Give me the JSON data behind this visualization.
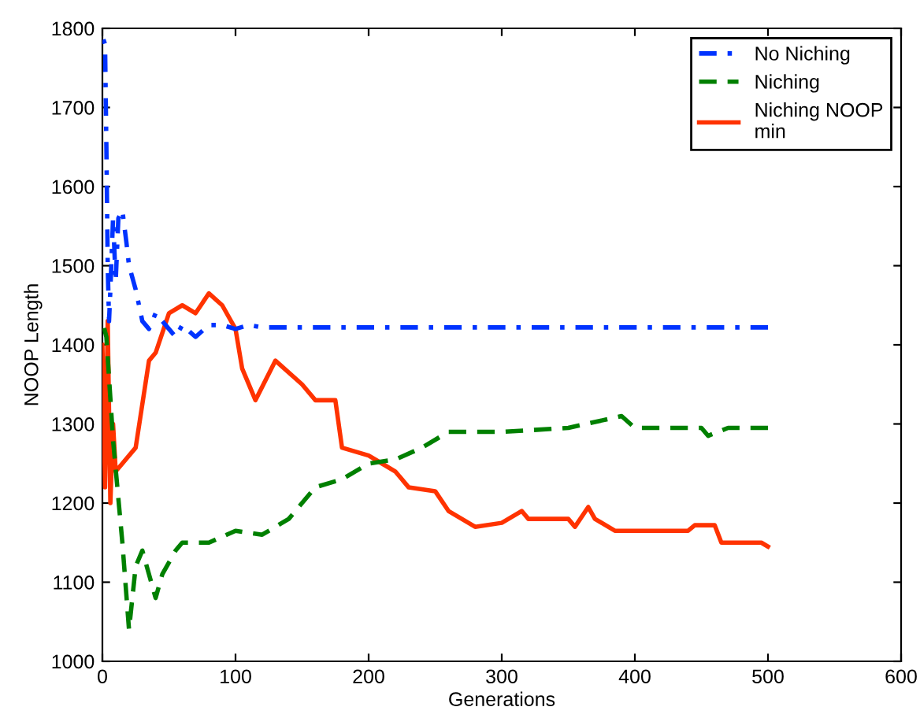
{
  "chart_data": {
    "type": "line",
    "xlabel": "Generations",
    "ylabel": "NOOP Length",
    "xlim": [
      0,
      600
    ],
    "ylim": [
      1000,
      1800
    ],
    "xticks": [
      0,
      100,
      200,
      300,
      400,
      500,
      600
    ],
    "yticks": [
      1000,
      1100,
      1200,
      1300,
      1400,
      1500,
      1600,
      1700,
      1800
    ],
    "grid": false,
    "legend": "top right",
    "marker": "none",
    "series": [
      {
        "name": "No Niching",
        "color": "#0033ff",
        "line_style": "dashdot",
        "x": [
          0,
          2,
          3,
          4,
          5,
          6,
          8,
          10,
          12,
          15,
          18,
          20,
          25,
          30,
          35,
          40,
          50,
          55,
          60,
          70,
          80,
          90,
          100,
          110,
          120,
          500
        ],
        "values": [
          1790,
          1780,
          1650,
          1500,
          1430,
          1470,
          1560,
          1480,
          1560,
          1570,
          1530,
          1500,
          1470,
          1430,
          1420,
          1440,
          1420,
          1410,
          1425,
          1410,
          1425,
          1425,
          1420,
          1425,
          1422,
          1422
        ]
      },
      {
        "name": "Niching",
        "color": "#008000",
        "line_style": "dashed",
        "x": [
          0,
          3,
          8,
          15,
          20,
          25,
          30,
          40,
          45,
          55,
          60,
          80,
          100,
          120,
          140,
          160,
          180,
          200,
          220,
          240,
          260,
          300,
          350,
          390,
          400,
          450,
          455,
          470,
          500
        ],
        "values": [
          1430,
          1410,
          1280,
          1150,
          1040,
          1120,
          1140,
          1080,
          1110,
          1140,
          1150,
          1150,
          1165,
          1160,
          1180,
          1220,
          1230,
          1250,
          1255,
          1270,
          1290,
          1290,
          1295,
          1310,
          1295,
          1295,
          1285,
          1295,
          1295
        ]
      },
      {
        "name": "Niching NOOP\nmin",
        "color": "#ff3300",
        "line_style": "solid",
        "x": [
          0,
          2,
          4,
          6,
          8,
          10,
          15,
          25,
          35,
          40,
          50,
          60,
          70,
          80,
          90,
          100,
          105,
          115,
          130,
          150,
          160,
          175,
          180,
          200,
          210,
          220,
          230,
          250,
          260,
          280,
          300,
          315,
          320,
          350,
          355,
          365,
          370,
          385,
          440,
          445,
          460,
          465,
          495,
          500
        ],
        "values": [
          1400,
          1220,
          1430,
          1200,
          1300,
          1240,
          1250,
          1270,
          1380,
          1390,
          1440,
          1450,
          1440,
          1465,
          1450,
          1420,
          1370,
          1330,
          1380,
          1350,
          1330,
          1330,
          1270,
          1260,
          1250,
          1240,
          1220,
          1215,
          1190,
          1170,
          1175,
          1190,
          1180,
          1180,
          1170,
          1195,
          1180,
          1165,
          1165,
          1172,
          1172,
          1150,
          1150,
          1145
        ]
      }
    ]
  }
}
